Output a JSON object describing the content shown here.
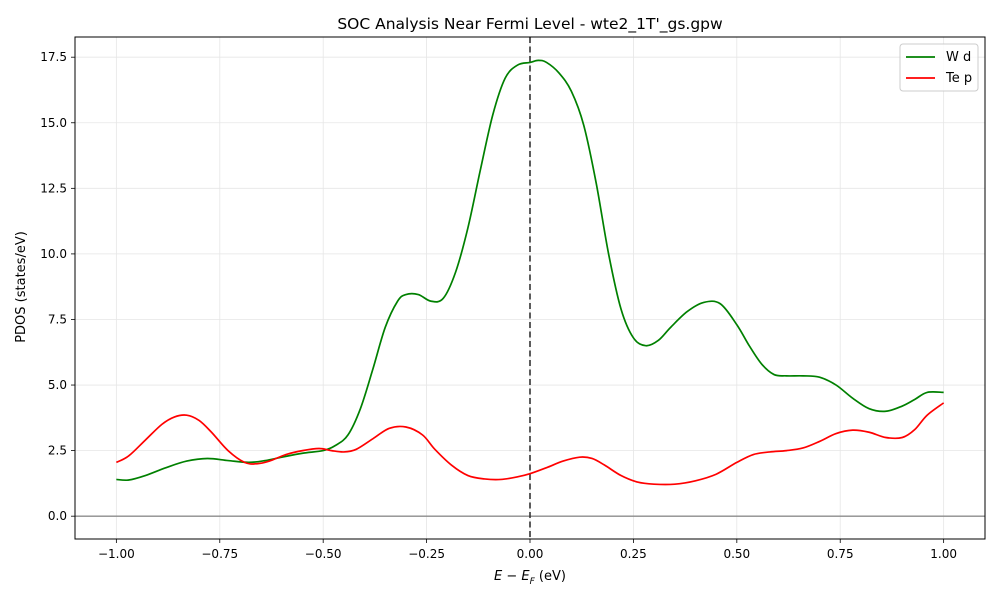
{
  "chart_data": {
    "type": "line",
    "title": "SOC Analysis Near Fermi Level - wte2_1T'_gs.gpw",
    "xlabel_main": "E − E",
    "xlabel_sub": "F",
    "xlabel_unit": " (eV)",
    "ylabel": "PDOS (states/eV)",
    "xlim": [
      -1.1,
      1.1
    ],
    "ylim": [
      -0.87,
      18.27
    ],
    "xticks": [
      -1.0,
      -0.75,
      -0.5,
      -0.25,
      0.0,
      0.25,
      0.5,
      0.75,
      1.0
    ],
    "xtick_labels": [
      "−1.00",
      "−0.75",
      "−0.50",
      "−0.25",
      "0.00",
      "0.25",
      "0.50",
      "0.75",
      "1.00"
    ],
    "yticks": [
      0.0,
      2.5,
      5.0,
      7.5,
      10.0,
      12.5,
      15.0,
      17.5
    ],
    "ytick_labels": [
      "0.0",
      "2.5",
      "5.0",
      "7.5",
      "10.0",
      "12.5",
      "15.0",
      "17.5"
    ],
    "grid": true,
    "legend_position": "top-right",
    "fermi_line_x": 0.0,
    "zero_line_y": 0.0,
    "series": [
      {
        "name": "W d",
        "color": "#008000",
        "x": [
          -1.0,
          -0.97,
          -0.93,
          -0.88,
          -0.83,
          -0.78,
          -0.73,
          -0.68,
          -0.64,
          -0.6,
          -0.55,
          -0.5,
          -0.47,
          -0.44,
          -0.41,
          -0.38,
          -0.35,
          -0.32,
          -0.3,
          -0.27,
          -0.24,
          -0.21,
          -0.18,
          -0.15,
          -0.12,
          -0.09,
          -0.06,
          -0.03,
          0.0,
          0.02,
          0.04,
          0.07,
          0.1,
          0.13,
          0.16,
          0.19,
          0.22,
          0.25,
          0.28,
          0.31,
          0.34,
          0.38,
          0.42,
          0.46,
          0.5,
          0.53,
          0.56,
          0.59,
          0.62,
          0.66,
          0.7,
          0.74,
          0.78,
          0.82,
          0.86,
          0.9,
          0.93,
          0.96,
          1.0
        ],
        "y": [
          1.4,
          1.38,
          1.55,
          1.85,
          2.1,
          2.2,
          2.12,
          2.05,
          2.12,
          2.25,
          2.4,
          2.5,
          2.7,
          3.1,
          4.1,
          5.6,
          7.2,
          8.2,
          8.45,
          8.45,
          8.2,
          8.3,
          9.3,
          11.0,
          13.2,
          15.3,
          16.7,
          17.2,
          17.3,
          17.38,
          17.3,
          16.9,
          16.2,
          14.9,
          12.7,
          10.0,
          7.9,
          6.8,
          6.5,
          6.7,
          7.2,
          7.8,
          8.15,
          8.1,
          7.3,
          6.5,
          5.8,
          5.4,
          5.35,
          5.35,
          5.3,
          5.0,
          4.5,
          4.1,
          4.0,
          4.2,
          4.45,
          4.72,
          4.72
        ]
      },
      {
        "name": "Te p",
        "color": "#ff0000",
        "x": [
          -1.0,
          -0.97,
          -0.93,
          -0.89,
          -0.86,
          -0.83,
          -0.8,
          -0.77,
          -0.73,
          -0.69,
          -0.66,
          -0.63,
          -0.59,
          -0.55,
          -0.51,
          -0.48,
          -0.45,
          -0.42,
          -0.38,
          -0.34,
          -0.3,
          -0.26,
          -0.23,
          -0.19,
          -0.15,
          -0.11,
          -0.07,
          -0.03,
          0.0,
          0.04,
          0.08,
          0.12,
          0.15,
          0.18,
          0.22,
          0.26,
          0.3,
          0.35,
          0.4,
          0.45,
          0.5,
          0.54,
          0.58,
          0.62,
          0.66,
          0.7,
          0.74,
          0.78,
          0.82,
          0.86,
          0.9,
          0.93,
          0.96,
          1.0
        ],
        "y": [
          2.05,
          2.3,
          2.9,
          3.5,
          3.78,
          3.85,
          3.65,
          3.2,
          2.5,
          2.05,
          2.0,
          2.1,
          2.35,
          2.5,
          2.58,
          2.5,
          2.45,
          2.55,
          2.95,
          3.35,
          3.4,
          3.1,
          2.55,
          1.95,
          1.55,
          1.42,
          1.4,
          1.5,
          1.62,
          1.85,
          2.1,
          2.25,
          2.2,
          1.95,
          1.55,
          1.3,
          1.22,
          1.22,
          1.35,
          1.6,
          2.05,
          2.35,
          2.45,
          2.5,
          2.6,
          2.85,
          3.15,
          3.28,
          3.2,
          3.0,
          3.0,
          3.3,
          3.85,
          4.32
        ]
      }
    ]
  }
}
